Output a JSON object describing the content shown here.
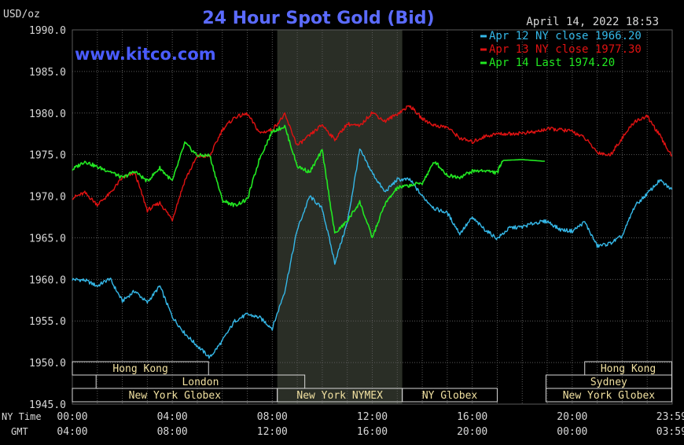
{
  "header": {
    "unit": "USD/oz",
    "title": "24 Hour Spot Gold (Bid)",
    "date": "April 14, 2022 18:53",
    "brand": "www.kitco.com"
  },
  "colors": {
    "background": "#000000",
    "grid": "#5a5a5a",
    "session_band": "#2a2e26",
    "title": "#5b6bff",
    "brand": "#4a5cff",
    "text": "#d8d8d8",
    "label_box": "#f0e0a0",
    "apr12": "#35b8e8",
    "apr13": "#e01212",
    "apr14": "#22e822"
  },
  "chart_data": {
    "type": "line",
    "title": "24 Hour Spot Gold (Bid)",
    "ylabel": "USD/oz",
    "ylim": [
      1945,
      1990
    ],
    "yticks": [
      "1990.0",
      "1985.0",
      "1980.0",
      "1975.0",
      "1970.0",
      "1965.0",
      "1960.0",
      "1955.0",
      "1950.0",
      "1945.0"
    ],
    "xlim": [
      0,
      24
    ],
    "xticks_ny": [
      "00:00",
      "04:00",
      "08:00",
      "12:00",
      "16:00",
      "20:00",
      "23:59"
    ],
    "xticks_gmt": [
      "04:00",
      "08:00",
      "12:00",
      "16:00",
      "20:00",
      "00:00",
      "03:59"
    ],
    "axis_row_labels": {
      "ny": "NY Time",
      "gmt": "GMT"
    },
    "grid": true,
    "legend": "top-right",
    "series": [
      {
        "name": "Apr 12 NY close 1966.20",
        "color_key": "apr12",
        "points": [
          [
            0,
            1960.0
          ],
          [
            0.5,
            1959.9
          ],
          [
            1,
            1959.2
          ],
          [
            1.5,
            1960.1
          ],
          [
            2,
            1957.4
          ],
          [
            2.5,
            1958.6
          ],
          [
            3,
            1957.2
          ],
          [
            3.5,
            1959.2
          ],
          [
            4,
            1955.5
          ],
          [
            4.5,
            1953.5
          ],
          [
            5,
            1952.0
          ],
          [
            5.5,
            1950.6
          ],
          [
            6,
            1952.6
          ],
          [
            6.5,
            1955.0
          ],
          [
            7,
            1955.8
          ],
          [
            7.5,
            1955.4
          ],
          [
            8,
            1954.1
          ],
          [
            8.5,
            1958.6
          ],
          [
            9,
            1966.0
          ],
          [
            9.5,
            1970.0
          ],
          [
            10,
            1968.5
          ],
          [
            10.5,
            1962.0
          ],
          [
            11,
            1966.8
          ],
          [
            11.5,
            1975.6
          ],
          [
            12,
            1972.8
          ],
          [
            12.5,
            1970.5
          ],
          [
            13,
            1972.0
          ],
          [
            13.5,
            1972.0
          ],
          [
            14,
            1970.0
          ],
          [
            14.5,
            1968.5
          ],
          [
            15,
            1968.0
          ],
          [
            15.5,
            1965.5
          ],
          [
            16,
            1967.4
          ],
          [
            16.5,
            1966.0
          ],
          [
            17,
            1964.9
          ],
          [
            17.5,
            1966.2
          ],
          [
            18,
            1966.3
          ],
          [
            18.5,
            1966.8
          ],
          [
            19,
            1967.0
          ],
          [
            19.5,
            1966.0
          ],
          [
            20,
            1965.8
          ],
          [
            20.5,
            1966.9
          ],
          [
            21,
            1964.0
          ],
          [
            21.5,
            1964.3
          ],
          [
            22,
            1965.2
          ],
          [
            22.5,
            1968.8
          ],
          [
            23,
            1970.3
          ],
          [
            23.5,
            1971.9
          ],
          [
            23.98,
            1970.8
          ]
        ]
      },
      {
        "name": "Apr 13 NY close 1977.30",
        "color_key": "apr13",
        "points": [
          [
            0,
            1969.8
          ],
          [
            0.5,
            1970.4
          ],
          [
            1,
            1969.0
          ],
          [
            1.5,
            1970.3
          ],
          [
            2,
            1972.2
          ],
          [
            2.5,
            1972.8
          ],
          [
            3,
            1968.3
          ],
          [
            3.5,
            1969.2
          ],
          [
            4,
            1967.2
          ],
          [
            4.5,
            1971.9
          ],
          [
            5,
            1974.8
          ],
          [
            5.5,
            1974.8
          ],
          [
            6,
            1978.0
          ],
          [
            6.5,
            1979.5
          ],
          [
            7,
            1979.9
          ],
          [
            7.5,
            1977.6
          ],
          [
            8,
            1978.0
          ],
          [
            8.5,
            1979.8
          ],
          [
            9,
            1976.1
          ],
          [
            9.5,
            1977.3
          ],
          [
            10,
            1978.6
          ],
          [
            10.5,
            1976.8
          ],
          [
            11,
            1978.7
          ],
          [
            11.5,
            1978.4
          ],
          [
            12,
            1980.1
          ],
          [
            12.5,
            1979.0
          ],
          [
            13,
            1979.9
          ],
          [
            13.5,
            1980.9
          ],
          [
            14,
            1979.3
          ],
          [
            14.5,
            1978.5
          ],
          [
            15,
            1978.3
          ],
          [
            15.5,
            1977.0
          ],
          [
            16,
            1976.5
          ],
          [
            16.5,
            1977.2
          ],
          [
            17,
            1977.5
          ],
          [
            17.5,
            1977.5
          ],
          [
            18,
            1977.6
          ],
          [
            18.5,
            1977.7
          ],
          [
            19,
            1978.1
          ],
          [
            19.5,
            1978.0
          ],
          [
            20,
            1977.8
          ],
          [
            20.5,
            1977.0
          ],
          [
            21,
            1975.3
          ],
          [
            21.5,
            1974.9
          ],
          [
            22,
            1977.0
          ],
          [
            22.5,
            1979.0
          ],
          [
            23,
            1979.6
          ],
          [
            23.5,
            1977.3
          ],
          [
            23.98,
            1974.8
          ]
        ]
      },
      {
        "name": "Apr 14 Last 1974.20",
        "color_key": "apr14",
        "points": [
          [
            0,
            1973.2
          ],
          [
            0.5,
            1974.2
          ],
          [
            1,
            1973.5
          ],
          [
            1.5,
            1973.0
          ],
          [
            2,
            1972.2
          ],
          [
            2.5,
            1973.0
          ],
          [
            3,
            1971.8
          ],
          [
            3.5,
            1973.4
          ],
          [
            4,
            1971.8
          ],
          [
            4.5,
            1976.4
          ],
          [
            5,
            1974.9
          ],
          [
            5.5,
            1974.9
          ],
          [
            6,
            1969.5
          ],
          [
            6.5,
            1968.9
          ],
          [
            7,
            1969.6
          ],
          [
            7.5,
            1974.6
          ],
          [
            8,
            1977.8
          ],
          [
            8.5,
            1978.4
          ],
          [
            9,
            1973.6
          ],
          [
            9.5,
            1972.9
          ],
          [
            10,
            1975.5
          ],
          [
            10.5,
            1965.5
          ],
          [
            11,
            1967.0
          ],
          [
            11.5,
            1969.3
          ],
          [
            12,
            1965.0
          ],
          [
            12.5,
            1969.0
          ],
          [
            13,
            1971.0
          ],
          [
            13.5,
            1971.3
          ],
          [
            14,
            1971.6
          ],
          [
            14.5,
            1974.2
          ],
          [
            15,
            1972.5
          ],
          [
            15.5,
            1972.3
          ],
          [
            16,
            1973.0
          ],
          [
            16.5,
            1973.1
          ],
          [
            17,
            1972.8
          ],
          [
            17.2,
            1974.3
          ],
          [
            18,
            1974.4
          ],
          [
            18.9,
            1974.2
          ]
        ]
      }
    ],
    "session_highlight": {
      "from": 8.2,
      "to": 13.2
    },
    "sessions": [
      {
        "label": "Hong Kong",
        "from": 0.0,
        "to": 5.45,
        "row": 0
      },
      {
        "label": "London",
        "from": 0.95,
        "to": 9.3,
        "row": 1
      },
      {
        "label": "New York Globex",
        "from": 0.0,
        "to": 8.2,
        "row": 2
      },
      {
        "label": "New York NYMEX",
        "from": 8.2,
        "to": 13.2,
        "row": 2
      },
      {
        "label": "NY Globex",
        "from": 13.2,
        "to": 17.0,
        "row": 2
      },
      {
        "label": "Hong Kong",
        "from": 20.5,
        "to": 23.98,
        "row": 0
      },
      {
        "label": "Sydney",
        "from": 18.95,
        "to": 23.98,
        "row": 1
      },
      {
        "label": "New York Globex",
        "from": 18.95,
        "to": 23.98,
        "row": 2
      }
    ]
  }
}
